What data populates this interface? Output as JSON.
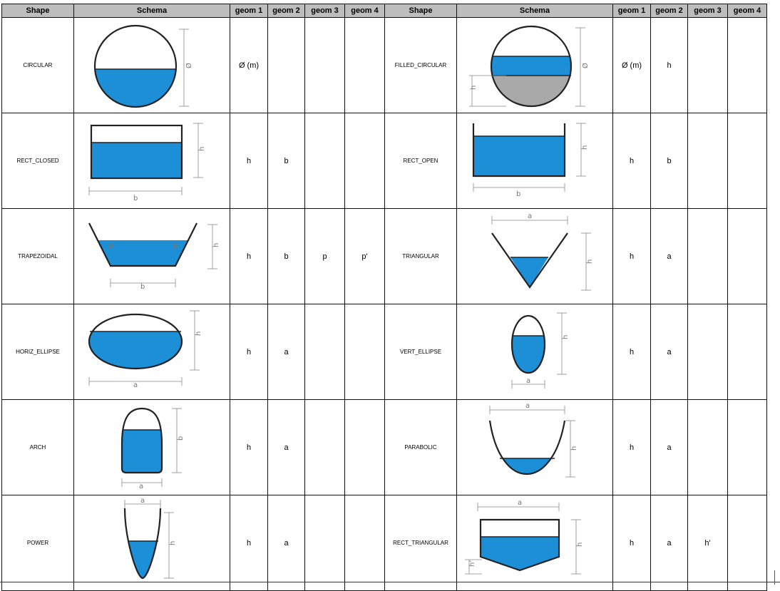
{
  "headers": [
    "Shape",
    "Schema",
    "geom 1",
    "geom 2",
    "geom 3",
    "geom 4",
    "Shape",
    "Schema",
    "geom 1",
    "geom 2",
    "geom 3",
    "geom 4"
  ],
  "rows": [
    {
      "left": {
        "shape": "CIRCULAR",
        "geom": [
          "Ø (m)",
          "",
          "",
          ""
        ]
      },
      "right": {
        "shape": "FILLED_CIRCULAR",
        "geom": [
          "Ø (m)",
          "h",
          "",
          ""
        ]
      }
    },
    {
      "left": {
        "shape": "RECT_CLOSED",
        "geom": [
          "h",
          "b",
          "",
          ""
        ]
      },
      "right": {
        "shape": "RECT_OPEN",
        "geom": [
          "h",
          "b",
          "",
          ""
        ]
      }
    },
    {
      "left": {
        "shape": "TRAPEZOIDAL",
        "geom": [
          "h",
          "b",
          "p",
          "p'"
        ]
      },
      "right": {
        "shape": "TRIANGULAR",
        "geom": [
          "h",
          "a",
          "",
          ""
        ]
      }
    },
    {
      "left": {
        "shape": "HORIZ_ELLIPSE",
        "geom": [
          "h",
          "a",
          "",
          ""
        ]
      },
      "right": {
        "shape": "VERT_ELLIPSE",
        "geom": [
          "h",
          "a",
          "",
          ""
        ]
      }
    },
    {
      "left": {
        "shape": "ARCH",
        "geom": [
          "h",
          "a",
          "",
          ""
        ]
      },
      "right": {
        "shape": "PARABOLIC",
        "geom": [
          "h",
          "a",
          "",
          ""
        ]
      }
    },
    {
      "left": {
        "shape": "POWER",
        "geom": [
          "h",
          "a",
          "",
          ""
        ]
      },
      "right": {
        "shape": "RECT_TRIANGULAR",
        "geom": [
          "h",
          "a",
          "h'",
          ""
        ]
      }
    }
  ],
  "schema_labels": {
    "diameter": "Ø",
    "h": "h",
    "b": "b",
    "a": "a",
    "p": "p",
    "h_prime": "h'"
  },
  "colors": {
    "water": "#1d8fd6",
    "sediment": "#a9a9a9",
    "header_bg": "#bdbdbd",
    "wall": "#222222"
  }
}
